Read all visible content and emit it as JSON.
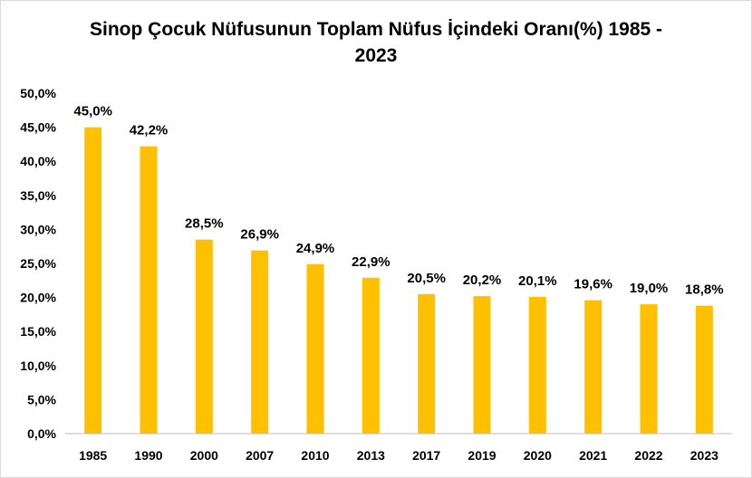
{
  "chart_data": {
    "type": "bar",
    "title_line1": "Sinop Çocuk Nüfusunun Toplam Nüfus İçindeki Oranı(%) 1985 -",
    "title_line2": "2023",
    "xlabel": "",
    "ylabel": "",
    "categories": [
      "1985",
      "1990",
      "2000",
      "2007",
      "2010",
      "2013",
      "2017",
      "2019",
      "2020",
      "2021",
      "2022",
      "2023"
    ],
    "values": [
      45.0,
      42.2,
      28.5,
      26.9,
      24.9,
      22.9,
      20.5,
      20.2,
      20.1,
      19.6,
      19.0,
      18.8
    ],
    "data_labels": [
      "45,0%",
      "42,2%",
      "28,5%",
      "26,9%",
      "24,9%",
      "22,9%",
      "20,5%",
      "20,2%",
      "20,1%",
      "19,6%",
      "19,0%",
      "18,8%"
    ],
    "yticks": [
      0,
      5,
      10,
      15,
      20,
      25,
      30,
      35,
      40,
      45,
      50
    ],
    "ytick_labels": [
      "0,0%",
      "5,0%",
      "10,0%",
      "15,0%",
      "20,0%",
      "25,0%",
      "30,0%",
      "35,0%",
      "40,0%",
      "45,0%",
      "50,0%"
    ],
    "ylim": [
      0,
      50
    ],
    "grid": false,
    "legend": "none",
    "bar_color": "#FFC000",
    "axis_color": "#bfbfbf"
  }
}
